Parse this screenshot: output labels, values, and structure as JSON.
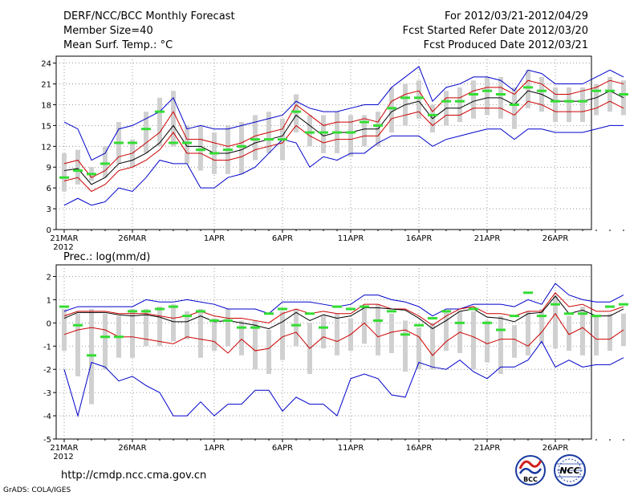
{
  "header": {
    "title": "DERF/NCC/BCC Monthly Forecast",
    "member_size": "Member Size=40",
    "variable": "Mean Surf. Temp.: °C",
    "period": "For 2012/03/21-2012/04/29",
    "started": "Fcst Started Refer Date 2012/03/20",
    "produced": "Fcst Produced Date 2012/03/21"
  },
  "footer": {
    "url": "http://cmdp.ncc.cma.gov.cn",
    "grads": "GrADS: COLA/IGES",
    "logo_bcc": "BCC",
    "logo_ncc": "NCC"
  },
  "colors": {
    "ensemble_mean": "#000000",
    "stddev_band": "#cc0000",
    "min_max": "#0000cc",
    "observed": "#33dd33",
    "spread_box": "#d0d0d0",
    "grid": "#808080"
  },
  "chart_data": [
    {
      "type": "line",
      "title": "Mean Surf. Temp.: °C",
      "x_tick_labels": [
        "21MAR",
        "26MAR",
        "1APR",
        "6APR",
        "11APR",
        "16APR",
        "21APR",
        "26APR"
      ],
      "x_year_label": "2012",
      "x_tick_days": [
        1,
        6,
        12,
        17,
        22,
        27,
        32,
        37
      ],
      "ylim": [
        0,
        25
      ],
      "yticks": [
        0,
        3,
        6,
        9,
        12,
        15,
        18,
        21,
        24
      ],
      "series": [
        {
          "name": "max",
          "values": [
            15.5,
            14.5,
            10,
            11,
            14.5,
            15,
            16,
            17,
            19,
            14.5,
            15,
            14.5,
            14.5,
            15,
            15.5,
            16,
            16.5,
            18.5,
            17.5,
            17,
            17,
            17.5,
            18,
            18,
            20.5,
            22,
            23.5,
            18.5,
            20.5,
            21,
            22,
            22,
            21.5,
            20,
            23,
            22.5,
            21,
            21,
            21,
            22,
            23,
            22
          ]
        },
        {
          "name": "plus_std",
          "values": [
            9.5,
            10,
            7.5,
            8.5,
            10.5,
            11,
            12.5,
            14,
            17,
            13,
            13,
            12.5,
            12,
            12.5,
            13.5,
            14,
            14.5,
            18,
            16.5,
            15,
            15.5,
            15.5,
            16,
            15.5,
            18.5,
            19.5,
            20,
            17,
            19,
            19,
            20,
            20.5,
            20.5,
            19.5,
            21.5,
            21,
            19.5,
            19.5,
            20,
            20.5,
            21.5,
            21
          ]
        },
        {
          "name": "mean",
          "values": [
            8.5,
            8.8,
            6.5,
            7.5,
            9.5,
            10,
            11,
            12.5,
            15,
            12,
            12,
            11,
            11,
            11.5,
            12.5,
            13,
            13.5,
            16.5,
            15,
            13.5,
            14,
            14,
            14.5,
            14.5,
            17,
            18,
            18.5,
            16,
            17.5,
            17.5,
            18.5,
            19,
            19,
            18,
            20,
            19.5,
            18.5,
            18.5,
            18.5,
            19,
            20,
            19
          ]
        },
        {
          "name": "minus_std",
          "values": [
            7,
            7.5,
            5.5,
            6.5,
            8.5,
            9,
            10,
            11.5,
            14,
            11,
            11,
            10,
            10,
            10.5,
            11.5,
            12,
            12.5,
            15,
            13.5,
            12.5,
            13,
            13,
            13.5,
            13.5,
            16,
            16.5,
            17,
            15,
            16.5,
            16.5,
            17.5,
            17.5,
            17.5,
            16.5,
            18.5,
            18,
            17,
            17,
            17,
            17.5,
            18.5,
            17.5
          ]
        },
        {
          "name": "min",
          "values": [
            3.5,
            4.5,
            3.5,
            4,
            6,
            5.5,
            7.5,
            10,
            9.5,
            9.5,
            6,
            6,
            7.5,
            8,
            9,
            11,
            13,
            12.5,
            9,
            10.5,
            10,
            11,
            11,
            12.5,
            13.5,
            13.5,
            13.5,
            12,
            13,
            13.5,
            14,
            14.5,
            14.5,
            13,
            14.5,
            14.5,
            14,
            14,
            14,
            14.5,
            15,
            15
          ]
        },
        {
          "name": "observed",
          "values": [
            7.5,
            8.5,
            8,
            9.5,
            12.5,
            12.5,
            14.5,
            17,
            12.5,
            12.5,
            11.5,
            11,
            11.5,
            12,
            13,
            13,
            13,
            17,
            14,
            14,
            14,
            14,
            15.5,
            15,
            17.5,
            19,
            19,
            16.5,
            18.5,
            18.5,
            19.5,
            20,
            19.5,
            18,
            20.5,
            20,
            18.5,
            18.5,
            18.5,
            20,
            20,
            19.5
          ]
        }
      ],
      "spread_boxes": [
        [
          5.5,
          11
        ],
        [
          6.5,
          11.5
        ],
        [
          7,
          9
        ],
        [
          7.5,
          12
        ],
        [
          9.5,
          15.5
        ],
        [
          9,
          13
        ],
        [
          11,
          17
        ],
        [
          12,
          19
        ],
        [
          12,
          20
        ],
        [
          9.5,
          15
        ],
        [
          8.5,
          15
        ],
        [
          8,
          14
        ],
        [
          8,
          15
        ],
        [
          8,
          15.5
        ],
        [
          10,
          16.5
        ],
        [
          11,
          17
        ],
        [
          10,
          16
        ],
        [
          14,
          19.5
        ],
        [
          12,
          16.5
        ],
        [
          11,
          16.5
        ],
        [
          11,
          17
        ],
        [
          10.5,
          16.5
        ],
        [
          12,
          16.5
        ],
        [
          12,
          17
        ],
        [
          14,
          20.5
        ],
        [
          15,
          21
        ],
        [
          16,
          21.5
        ],
        [
          14,
          18
        ],
        [
          15,
          20
        ],
        [
          15.5,
          20.5
        ],
        [
          16,
          21.5
        ],
        [
          16.5,
          22
        ],
        [
          16,
          22
        ],
        [
          14.5,
          20.5
        ],
        [
          17.5,
          23
        ],
        [
          17,
          22
        ],
        [
          15.5,
          20.5
        ],
        [
          15.5,
          20.5
        ],
        [
          15.5,
          20.5
        ],
        [
          16.5,
          21
        ],
        [
          17,
          22
        ],
        [
          16.5,
          21.5
        ]
      ]
    },
    {
      "type": "line",
      "title": "Prec.: log(mm/d)",
      "x_tick_labels": [
        "21MAR",
        "26MAR",
        "1APR",
        "6APR",
        "11APR",
        "16APR",
        "21APR",
        "26APR"
      ],
      "x_year_label": "2012",
      "x_tick_days": [
        1,
        6,
        12,
        17,
        22,
        27,
        32,
        37
      ],
      "ylim": [
        -5,
        2.5
      ],
      "yticks": [
        -5,
        -4,
        -3,
        -2,
        -1,
        0,
        1,
        2
      ],
      "series": [
        {
          "name": "max",
          "values": [
            0.5,
            0.7,
            0.7,
            0.7,
            0.7,
            0.7,
            1,
            0.9,
            0.9,
            1,
            0.9,
            0.8,
            0.6,
            0.6,
            0.6,
            0.4,
            0.9,
            0.9,
            0.9,
            0.8,
            0.7,
            0.8,
            1.2,
            1.2,
            1,
            0.9,
            0.7,
            0.3,
            0.6,
            0.6,
            0.8,
            0.8,
            0.8,
            0.7,
            1,
            0.8,
            1.7,
            1.2,
            1,
            0.9,
            0.9,
            1.2
          ]
        },
        {
          "name": "plus_std",
          "values": [
            0.3,
            0.5,
            0.5,
            0.5,
            0.4,
            0.4,
            0.4,
            0.3,
            0.2,
            0.3,
            0.5,
            0.3,
            0.2,
            0.2,
            0.1,
            0,
            0.4,
            0.6,
            0.4,
            0.5,
            0.4,
            0.4,
            0.8,
            0.8,
            0.6,
            0.6,
            0.3,
            -0.1,
            0.3,
            0.6,
            0.7,
            0.4,
            0.4,
            0.3,
            0.5,
            0.5,
            1.3,
            0.7,
            0.8,
            0.5,
            0.5,
            0.7
          ]
        },
        {
          "name": "mean",
          "values": [
            0.2,
            0.45,
            0.45,
            0.45,
            0.35,
            0.3,
            0.35,
            0.25,
            0.05,
            0.05,
            0.3,
            0.05,
            0.1,
            0,
            -0.1,
            -0.25,
            0.05,
            0.45,
            0.1,
            0.35,
            0.2,
            0.3,
            0.65,
            0.65,
            0.6,
            0.55,
            0.2,
            -0.25,
            0.1,
            0.5,
            0.6,
            0.25,
            0.2,
            0.05,
            0.4,
            0.45,
            1.15,
            0.4,
            0.55,
            0.3,
            0.3,
            0.6
          ]
        },
        {
          "name": "minus_std",
          "values": [
            -0.5,
            -0.3,
            -0.2,
            -0.3,
            -0.6,
            -0.6,
            -0.7,
            -0.8,
            -0.9,
            -0.6,
            -0.7,
            -0.8,
            -1.3,
            -0.7,
            -1.2,
            -1.1,
            -0.6,
            -0.4,
            -1.1,
            -0.6,
            -0.8,
            -0.5,
            0,
            -0.6,
            -0.4,
            -0.3,
            -0.6,
            -1.4,
            -0.8,
            -0.4,
            -0.6,
            -0.9,
            -0.7,
            -0.7,
            -1,
            -0.4,
            0.4,
            -0.5,
            -0.2,
            -0.7,
            -0.7,
            -0.3
          ]
        },
        {
          "name": "min",
          "values": [
            -2,
            -4,
            -1.7,
            -1.9,
            -2.5,
            -2.3,
            -2.7,
            -3,
            -4,
            -4,
            -3.4,
            -4,
            -3.5,
            -3.5,
            -2.9,
            -2.9,
            -3.8,
            -3.2,
            -3.5,
            -3.5,
            -4,
            -2.4,
            -2.2,
            -2.4,
            -3.1,
            -3.2,
            -1.7,
            -1.9,
            -2,
            -1.6,
            -2.1,
            -2.4,
            -1.9,
            -1.9,
            -1.6,
            -0.8,
            -1.9,
            -1.6,
            -1.9,
            -1.8,
            -1.8,
            -1.5
          ]
        },
        {
          "name": "observed",
          "values": [
            0.7,
            -0.1,
            -1.4,
            -0.6,
            -0.6,
            0.5,
            0.5,
            0.6,
            0.7,
            0.3,
            0.5,
            0.1,
            0.1,
            -0.2,
            -0.2,
            0.4,
            0.6,
            -0.1,
            0.4,
            -0.2,
            0.7,
            0.6,
            0.7,
            0.1,
            0.5,
            -0.5,
            -0.1,
            0.2,
            0.5,
            0,
            0.6,
            0,
            -0.3,
            0.3,
            1.3,
            0.3,
            0.8,
            0.4,
            0.4,
            0.3,
            0.7,
            0.8
          ]
        }
      ],
      "spread_boxes": [
        [
          -1.2,
          0.6
        ],
        [
          -2.3,
          0.4
        ],
        [
          -3.5,
          0.6
        ],
        [
          -2,
          0.4
        ],
        [
          -1.5,
          0.3
        ],
        [
          -1.5,
          0.6
        ],
        [
          -1,
          0.6
        ],
        [
          -1,
          0.7
        ],
        [
          -0.8,
          0.8
        ],
        [
          -0.7,
          0.5
        ],
        [
          -1.5,
          0.6
        ],
        [
          -1.2,
          0.2
        ],
        [
          -1,
          0.6
        ],
        [
          -1.4,
          0.1
        ],
        [
          -2,
          0.1
        ],
        [
          -2.2,
          -0.3
        ],
        [
          -1.6,
          0.5
        ],
        [
          -1,
          0.6
        ],
        [
          -2.2,
          0
        ],
        [
          -1.1,
          0.3
        ],
        [
          -1.4,
          0.4
        ],
        [
          -1.2,
          0.2
        ],
        [
          -0.9,
          0.7
        ],
        [
          -1.4,
          0.8
        ],
        [
          -1.3,
          0.4
        ],
        [
          -2.1,
          0.1
        ],
        [
          -2,
          -0.2
        ],
        [
          -2,
          0
        ],
        [
          -1.2,
          0.5
        ],
        [
          -1.3,
          0.5
        ],
        [
          -2,
          0.5
        ],
        [
          -1.7,
          0.1
        ],
        [
          -2.2,
          0.3
        ],
        [
          -1.5,
          -0.1
        ],
        [
          -1.4,
          0.5
        ],
        [
          -0.9,
          0.6
        ],
        [
          -1.1,
          1.2
        ],
        [
          -1.2,
          0.3
        ],
        [
          -1.4,
          0.7
        ],
        [
          -1.4,
          0.3
        ],
        [
          -1.2,
          0.4
        ],
        [
          -1,
          0.4
        ]
      ]
    }
  ]
}
